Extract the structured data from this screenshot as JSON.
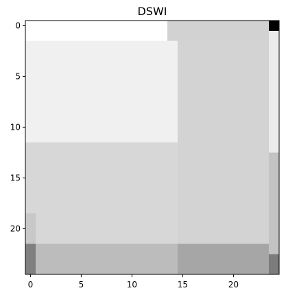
{
  "chart_data": {
    "type": "heatmap",
    "title": "DSWI",
    "xlabel": "",
    "ylabel": "",
    "colormap": "gray",
    "xlim": [
      -0.5,
      24.5
    ],
    "ylim": [
      24.5,
      -0.5
    ],
    "x_ticks": [
      0,
      5,
      10,
      15,
      20
    ],
    "y_ticks": [
      0,
      5,
      10,
      15,
      20
    ],
    "x_tick_labels": [
      "0",
      "5",
      "10",
      "15",
      "20"
    ],
    "y_tick_labels": [
      "0",
      "5",
      "10",
      "15",
      "20"
    ],
    "grid": false,
    "regions": [
      {
        "x0": 0,
        "x1": 13,
        "y0": 0,
        "y1": 1,
        "color": "#ffffff"
      },
      {
        "x0": 14,
        "x1": 23,
        "y0": 0,
        "y1": 1,
        "color": "#d2d2d2"
      },
      {
        "x0": 24,
        "x1": 24,
        "y0": 0,
        "y1": 0,
        "color": "#000000"
      },
      {
        "x0": 24,
        "x1": 24,
        "y0": 1,
        "y1": 12,
        "color": "#ebebeb"
      },
      {
        "x0": 0,
        "x1": 14,
        "y0": 2,
        "y1": 11,
        "color": "#f0f0f0"
      },
      {
        "x0": 15,
        "x1": 23,
        "y0": 2,
        "y1": 21,
        "color": "#d3d3d3"
      },
      {
        "x0": 0,
        "x1": 14,
        "y0": 12,
        "y1": 21,
        "color": "#d7d7d7"
      },
      {
        "x0": 0,
        "x1": 0,
        "y0": 19,
        "y1": 21,
        "color": "#c8c8c8"
      },
      {
        "x0": 24,
        "x1": 24,
        "y0": 13,
        "y1": 22,
        "color": "#c3c3c3"
      },
      {
        "x0": 0,
        "x1": 0,
        "y0": 22,
        "y1": 24,
        "color": "#808080"
      },
      {
        "x0": 1,
        "x1": 14,
        "y0": 22,
        "y1": 24,
        "color": "#bcbcbc"
      },
      {
        "x0": 15,
        "x1": 23,
        "y0": 22,
        "y1": 24,
        "color": "#a6a6a6"
      },
      {
        "x0": 24,
        "x1": 24,
        "y0": 23,
        "y1": 24,
        "color": "#7c7c7c"
      }
    ]
  }
}
